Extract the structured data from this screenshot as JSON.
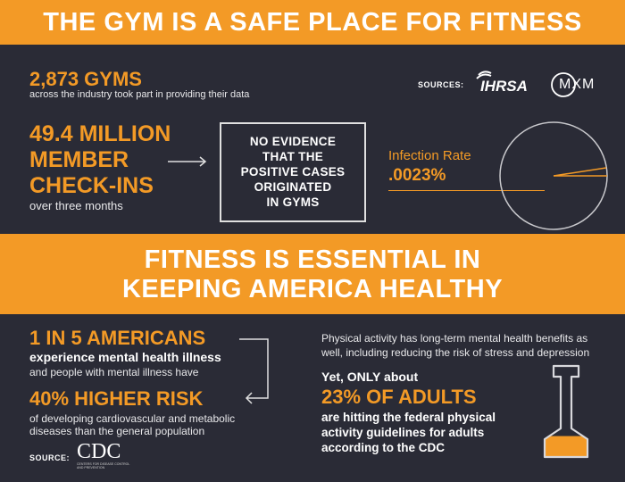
{
  "header": {
    "title": "THE GYM IS A SAFE PLACE FOR FITNESS"
  },
  "gyms": {
    "count": "2,873 GYMS",
    "desc": "across the industry took part in providing their data"
  },
  "sources_top": {
    "label": "SOURCES:",
    "logo1": "IHRSA",
    "logo2": "MXM"
  },
  "checkins": {
    "line1": "49.4 MILLION",
    "line2": "MEMBER",
    "line3": "CHECK-INS",
    "sub": "over three months"
  },
  "evidence": {
    "lines": [
      "NO EVIDENCE",
      "THAT THE",
      "POSITIVE CASES",
      "ORIGINATED",
      "IN GYMS"
    ]
  },
  "infection": {
    "label": "Infection Rate",
    "value": ".0023%"
  },
  "infection_value_percent": 0.0023,
  "banner2": {
    "line1": "FITNESS IS ESSENTIAL IN",
    "line2": "KEEPING AMERICA HEALTHY"
  },
  "americans": {
    "headline": "1 IN 5 AMERICANS",
    "bold_line": "experience mental health illness",
    "line": "and people with mental illness have"
  },
  "risk": {
    "headline": "40% HIGHER RISK",
    "line1": "of developing cardiovascular and metabolic",
    "line2": "diseases than the general population"
  },
  "sources_bottom": {
    "label": "SOURCE:",
    "logo": "CDC",
    "logo_sub": "CENTERS FOR DISEASE CONTROL AND PREVENTION"
  },
  "activity": {
    "line1": "Physical activity has long-term mental health benefits as",
    "line2": "well, including reducing the risk of stress and depression"
  },
  "adults": {
    "intro": "Yet, ONLY about",
    "headline": "23% OF ADULTS",
    "line1": "are hitting the federal physical",
    "line2": "activity guidelines for adults",
    "line3": "according to the CDC"
  },
  "adults_percent": 23,
  "colors": {
    "accent": "#f39a26",
    "background": "#2a2b36",
    "text": "#ffffff"
  }
}
